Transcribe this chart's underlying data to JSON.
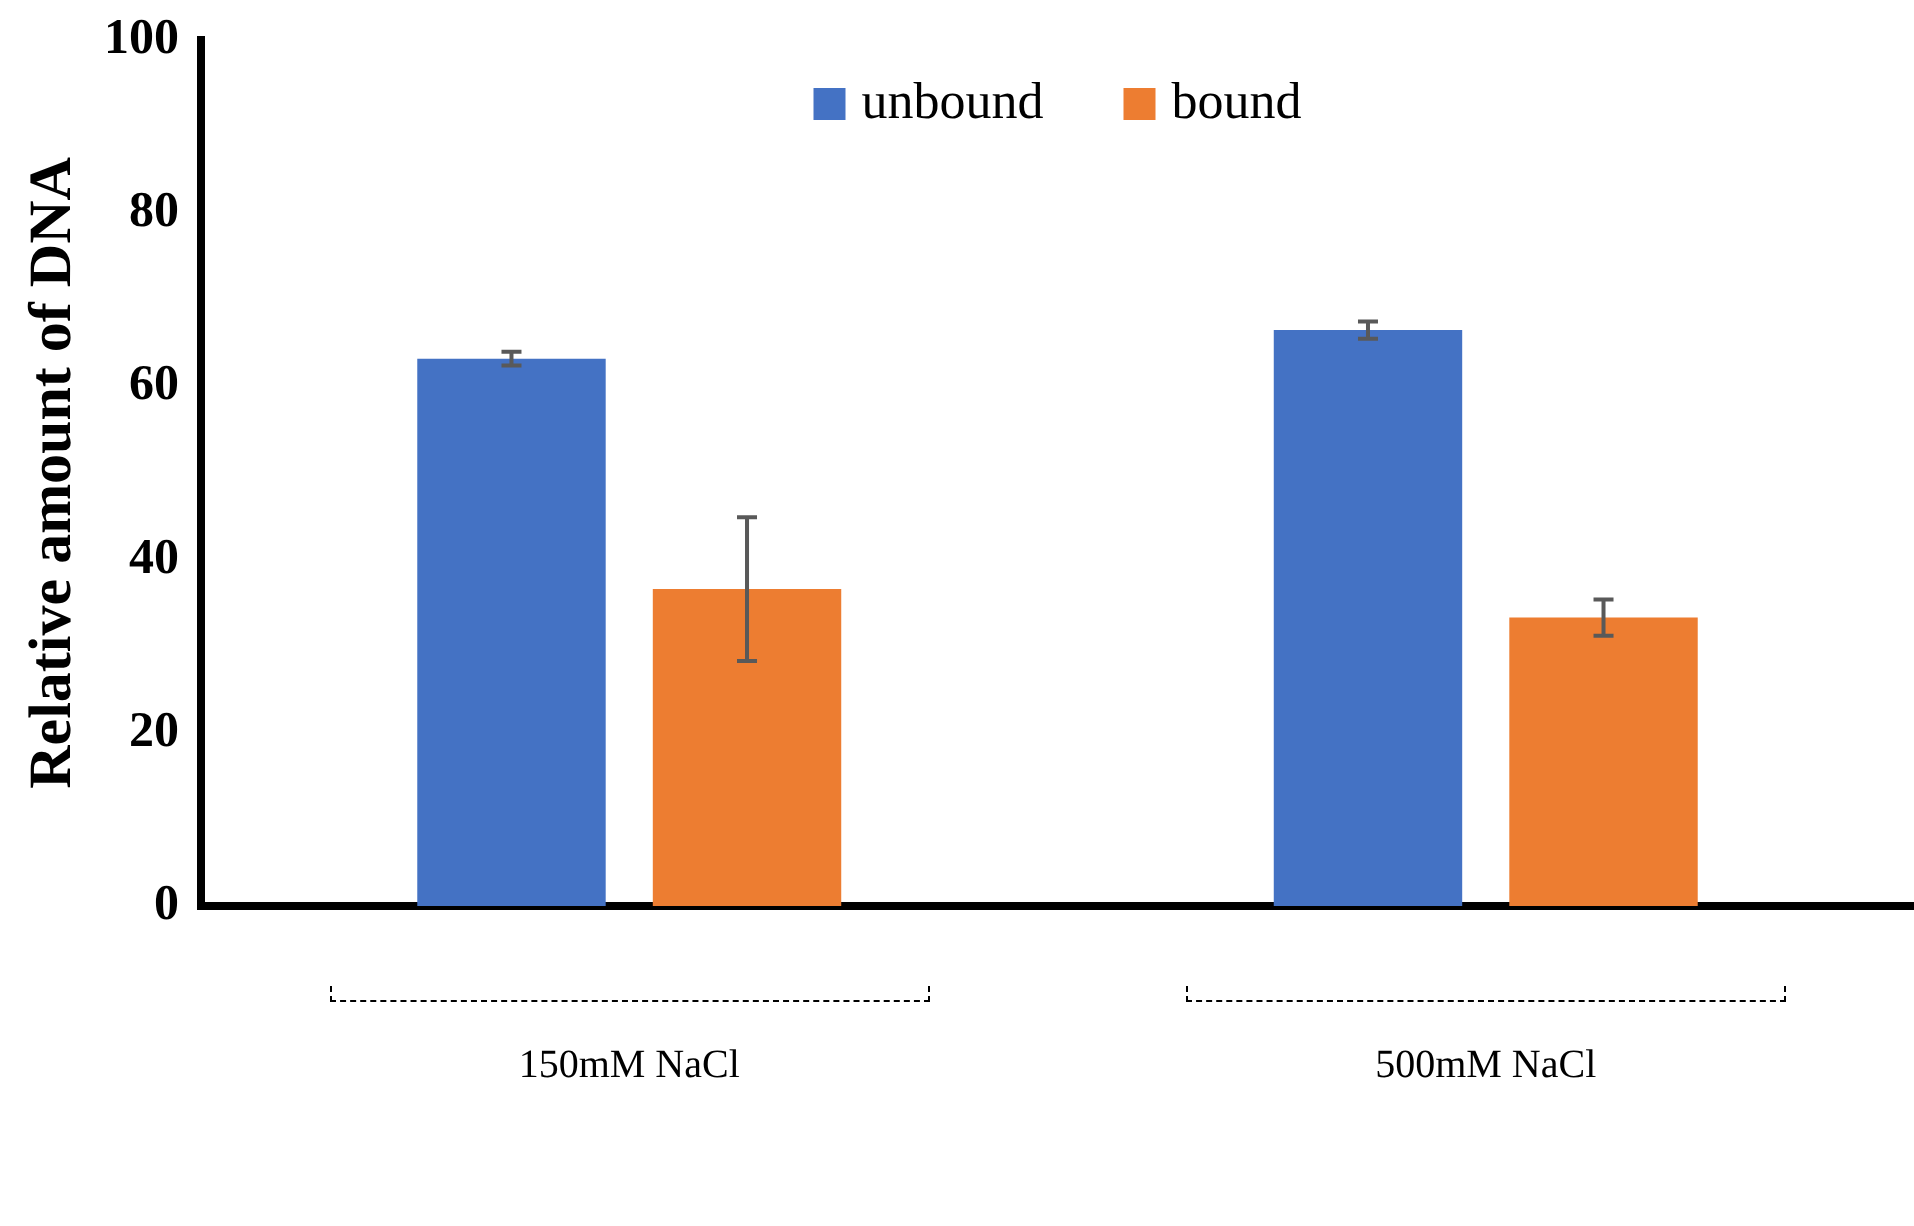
{
  "chart_data": {
    "type": "bar",
    "ylabel": "Relative amount of DNA",
    "categories": [
      "150mM NaCl",
      "500mM NaCl"
    ],
    "series": [
      {
        "name": "unbound",
        "color": "#4472c4",
        "values": [
          63.2,
          66.5
        ],
        "errors": [
          0.8,
          1.0
        ]
      },
      {
        "name": "bound",
        "color": "#ed7d31",
        "values": [
          36.6,
          33.3
        ],
        "errors": [
          8.3,
          2.1
        ]
      }
    ],
    "ylim": [
      0,
      100
    ],
    "yticks": [
      0,
      20,
      40,
      60,
      80,
      100
    ],
    "grid": false,
    "legend": "top"
  }
}
